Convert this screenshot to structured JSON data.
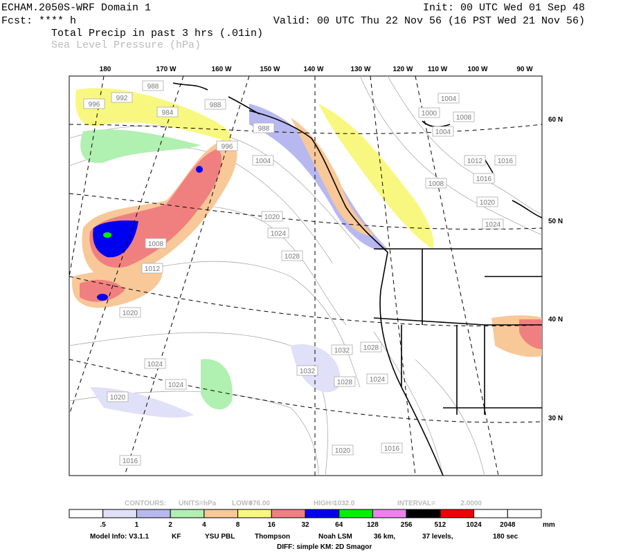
{
  "header": {
    "title": "ECHAM.2050S-WRF Domain 1",
    "init": "Init: 00 UTC Wed 01 Sep 48",
    "fcst": "Fcst: **** h",
    "valid": "Valid: 00 UTC Thu 22 Nov 56 (16 PST Wed 21 Nov 56)",
    "field_precip": "Total Precip in past 3 hrs (.01in)",
    "field_slp": "Sea Level Pressure (hPa)"
  },
  "map": {
    "lon_labels": [
      "180",
      "170 W",
      "160 W",
      "150 W",
      "140 W",
      "130 W",
      "120 W",
      "110 W",
      "100 W",
      "90 W"
    ],
    "lat_labels": [
      "60 N",
      "50 N",
      "40 N",
      "30 N"
    ],
    "contour_labels": [
      "996",
      "992",
      "988",
      "984",
      "988",
      "988",
      "996",
      "1004",
      "1000",
      "1004",
      "1008",
      "1004",
      "1012",
      "1016",
      "1016",
      "1008",
      "1020",
      "1024",
      "1020",
      "1024",
      "1008",
      "1028",
      "1012",
      "1020",
      "1032",
      "1028",
      "1024",
      "1032",
      "1024",
      "1028",
      "1024",
      "1020",
      "1016",
      "1020",
      "1016"
    ]
  },
  "legend": {
    "contours": [
      "CONTOURS:",
      "UNITS=hPa",
      "LOW=",
      "976.00",
      "HIGH=",
      "1032.0",
      "INTERVAL=",
      "2.0000"
    ],
    "colorbar_labels": [
      ".5",
      "1",
      "2",
      "4",
      "8",
      "16",
      "32",
      "64",
      "128",
      "256",
      "512",
      "1024",
      "2048"
    ],
    "units": "mm"
  },
  "footer": {
    "model_info": [
      "Model Info: V3.1.1",
      "KF",
      "YSU PBL",
      "Thompson",
      "Noah LSM",
      "36 km,",
      "37 levels,",
      "180 sec"
    ],
    "diff": "DIFF: simple KM: 2D Smagor"
  }
}
